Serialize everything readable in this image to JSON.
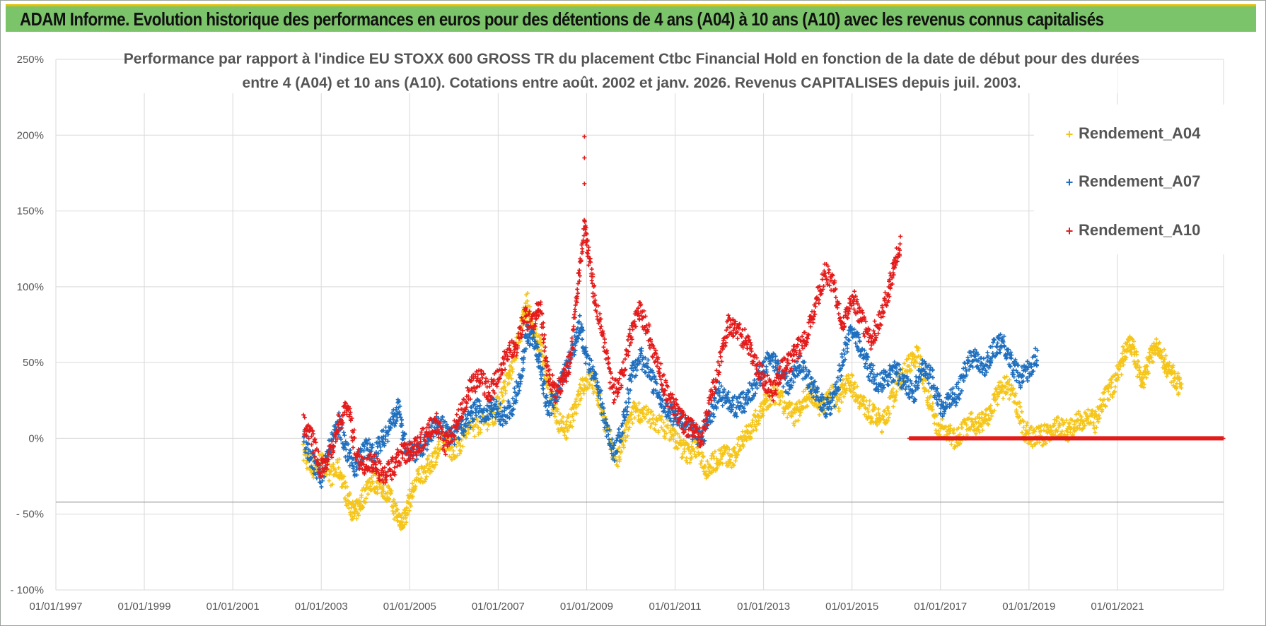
{
  "header": {
    "title": "ADAM Informe. Evolution historique des performances en euros pour des détentions de 4 ans (A04) à 10 ans (A10) avec les revenus connus capitalisés"
  },
  "chart_data": {
    "type": "scatter",
    "title_line1": "Performance par rapport à l'indice EU STOXX 600 GROSS TR  du placement Ctbc Financial Hold  en fonction de la date de début pour des durées",
    "title_line2": "entre 4 (A04) et 10 ans (A10).  Cotations entre août. 2002 et janv. 2026. Revenus CAPITALISES depuis juil. 2003.",
    "x_tick_labels": [
      "01/01/1997",
      "01/01/1999",
      "01/01/2001",
      "01/01/2003",
      "01/01/2005",
      "01/01/2007",
      "01/01/2009",
      "01/01/2011",
      "01/01/2013",
      "01/01/2015",
      "01/01/2017",
      "01/01/2019",
      "01/01/2021"
    ],
    "xlim": [
      1997.0,
      2023.4
    ],
    "y_tick_labels": [
      "250%",
      "200%",
      "150%",
      "100%",
      "50%",
      "0%",
      "- 50%",
      "- 100%"
    ],
    "y_ticks": [
      250,
      200,
      150,
      100,
      50,
      0,
      -50,
      -100
    ],
    "ylim": [
      -100,
      250
    ],
    "legend_position": "top-right",
    "series": [
      {
        "name": "Rendement_A04",
        "color": "#f5c518",
        "points": [
          [
            2002.6,
            -10
          ],
          [
            2002.8,
            -20
          ],
          [
            2003.0,
            -15
          ],
          [
            2003.2,
            -25
          ],
          [
            2003.4,
            -20
          ],
          [
            2003.6,
            -40
          ],
          [
            2003.75,
            -50
          ],
          [
            2003.9,
            -42
          ],
          [
            2004.1,
            -28
          ],
          [
            2004.3,
            -30
          ],
          [
            2004.5,
            -35
          ],
          [
            2004.7,
            -50
          ],
          [
            2004.85,
            -55
          ],
          [
            2005.0,
            -40
          ],
          [
            2005.2,
            -25
          ],
          [
            2005.4,
            -20
          ],
          [
            2005.6,
            -10
          ],
          [
            2005.8,
            0
          ],
          [
            2006.0,
            -10
          ],
          [
            2006.3,
            5
          ],
          [
            2006.6,
            10
          ],
          [
            2006.9,
            15
          ],
          [
            2007.1,
            30
          ],
          [
            2007.3,
            45
          ],
          [
            2007.5,
            70
          ],
          [
            2007.65,
            90
          ],
          [
            2007.8,
            70
          ],
          [
            2007.95,
            60
          ],
          [
            2008.1,
            40
          ],
          [
            2008.3,
            15
          ],
          [
            2008.5,
            5
          ],
          [
            2008.7,
            15
          ],
          [
            2008.9,
            35
          ],
          [
            2009.1,
            40
          ],
          [
            2009.3,
            25
          ],
          [
            2009.5,
            0
          ],
          [
            2009.7,
            -15
          ],
          [
            2009.9,
            5
          ],
          [
            2010.1,
            20
          ],
          [
            2010.3,
            15
          ],
          [
            2010.6,
            10
          ],
          [
            2010.9,
            5
          ],
          [
            2011.1,
            -5
          ],
          [
            2011.3,
            -10
          ],
          [
            2011.5,
            -5
          ],
          [
            2011.7,
            -20
          ],
          [
            2011.9,
            -15
          ],
          [
            2012.1,
            -10
          ],
          [
            2012.3,
            -15
          ],
          [
            2012.5,
            0
          ],
          [
            2012.7,
            5
          ],
          [
            2012.9,
            15
          ],
          [
            2013.1,
            25
          ],
          [
            2013.3,
            30
          ],
          [
            2013.5,
            20
          ],
          [
            2013.7,
            15
          ],
          [
            2013.9,
            25
          ],
          [
            2014.1,
            30
          ],
          [
            2014.3,
            20
          ],
          [
            2014.5,
            30
          ],
          [
            2014.7,
            25
          ],
          [
            2014.9,
            40
          ],
          [
            2015.1,
            30
          ],
          [
            2015.3,
            20
          ],
          [
            2015.5,
            15
          ],
          [
            2015.7,
            10
          ],
          [
            2015.9,
            25
          ],
          [
            2016.1,
            40
          ],
          [
            2016.3,
            50
          ],
          [
            2016.5,
            55
          ],
          [
            2016.7,
            30
          ],
          [
            2016.9,
            10
          ],
          [
            2017.1,
            5
          ],
          [
            2017.3,
            0
          ],
          [
            2017.5,
            5
          ],
          [
            2017.7,
            10
          ],
          [
            2017.9,
            10
          ],
          [
            2018.1,
            15
          ],
          [
            2018.3,
            30
          ],
          [
            2018.5,
            35
          ],
          [
            2018.7,
            25
          ],
          [
            2018.9,
            5
          ],
          [
            2019.1,
            0
          ],
          [
            2019.3,
            2
          ],
          [
            2019.5,
            5
          ],
          [
            2019.7,
            8
          ],
          [
            2019.9,
            5
          ],
          [
            2020.1,
            10
          ],
          [
            2020.3,
            15
          ],
          [
            2020.5,
            10
          ],
          [
            2020.7,
            25
          ],
          [
            2020.9,
            35
          ],
          [
            2021.1,
            50
          ],
          [
            2021.25,
            65
          ],
          [
            2021.4,
            55
          ],
          [
            2021.55,
            35
          ],
          [
            2021.7,
            50
          ],
          [
            2021.85,
            60
          ],
          [
            2022.0,
            55
          ],
          [
            2022.15,
            45
          ],
          [
            2022.3,
            40
          ],
          [
            2022.45,
            30
          ]
        ]
      },
      {
        "name": "Rendement_A07",
        "color": "#1e6fbf",
        "points": [
          [
            2002.6,
            0
          ],
          [
            2002.8,
            -15
          ],
          [
            2003.0,
            -25
          ],
          [
            2003.2,
            -5
          ],
          [
            2003.4,
            10
          ],
          [
            2003.6,
            -10
          ],
          [
            2003.8,
            -20
          ],
          [
            2004.0,
            -5
          ],
          [
            2004.2,
            -10
          ],
          [
            2004.4,
            0
          ],
          [
            2004.6,
            10
          ],
          [
            2004.75,
            20
          ],
          [
            2004.9,
            -5
          ],
          [
            2005.1,
            -10
          ],
          [
            2005.3,
            -5
          ],
          [
            2005.5,
            5
          ],
          [
            2005.7,
            10
          ],
          [
            2005.9,
            0
          ],
          [
            2006.1,
            5
          ],
          [
            2006.3,
            10
          ],
          [
            2006.5,
            20
          ],
          [
            2006.7,
            15
          ],
          [
            2006.9,
            20
          ],
          [
            2007.1,
            15
          ],
          [
            2007.3,
            20
          ],
          [
            2007.5,
            40
          ],
          [
            2007.65,
            70
          ],
          [
            2007.8,
            65
          ],
          [
            2007.95,
            50
          ],
          [
            2008.1,
            20
          ],
          [
            2008.3,
            25
          ],
          [
            2008.5,
            45
          ],
          [
            2008.7,
            60
          ],
          [
            2008.85,
            75
          ],
          [
            2009.0,
            50
          ],
          [
            2009.2,
            40
          ],
          [
            2009.4,
            15
          ],
          [
            2009.6,
            -10
          ],
          [
            2009.8,
            5
          ],
          [
            2010.0,
            40
          ],
          [
            2010.2,
            55
          ],
          [
            2010.4,
            45
          ],
          [
            2010.6,
            30
          ],
          [
            2010.8,
            20
          ],
          [
            2011.0,
            15
          ],
          [
            2011.2,
            10
          ],
          [
            2011.4,
            5
          ],
          [
            2011.6,
            0
          ],
          [
            2011.8,
            15
          ],
          [
            2012.0,
            30
          ],
          [
            2012.2,
            25
          ],
          [
            2012.4,
            20
          ],
          [
            2012.6,
            25
          ],
          [
            2012.8,
            35
          ],
          [
            2013.0,
            45
          ],
          [
            2013.2,
            55
          ],
          [
            2013.4,
            40
          ],
          [
            2013.6,
            35
          ],
          [
            2013.8,
            50
          ],
          [
            2014.0,
            40
          ],
          [
            2014.2,
            30
          ],
          [
            2014.4,
            20
          ],
          [
            2014.6,
            25
          ],
          [
            2014.8,
            55
          ],
          [
            2015.0,
            70
          ],
          [
            2015.2,
            60
          ],
          [
            2015.4,
            45
          ],
          [
            2015.6,
            35
          ],
          [
            2015.8,
            40
          ],
          [
            2016.0,
            45
          ],
          [
            2016.2,
            35
          ],
          [
            2016.4,
            30
          ],
          [
            2016.6,
            45
          ],
          [
            2016.8,
            40
          ],
          [
            2017.0,
            20
          ],
          [
            2017.2,
            25
          ],
          [
            2017.4,
            30
          ],
          [
            2017.6,
            50
          ],
          [
            2017.8,
            55
          ],
          [
            2018.0,
            45
          ],
          [
            2018.2,
            60
          ],
          [
            2018.4,
            65
          ],
          [
            2018.6,
            50
          ],
          [
            2018.8,
            40
          ],
          [
            2019.0,
            45
          ],
          [
            2019.2,
            55
          ]
        ]
      },
      {
        "name": "Rendement_A10",
        "color": "#e41b1b",
        "points": [
          [
            2002.6,
            10
          ],
          [
            2002.8,
            0
          ],
          [
            2003.0,
            -20
          ],
          [
            2003.2,
            -10
          ],
          [
            2003.4,
            10
          ],
          [
            2003.6,
            20
          ],
          [
            2003.8,
            -10
          ],
          [
            2004.0,
            -20
          ],
          [
            2004.2,
            -15
          ],
          [
            2004.4,
            -25
          ],
          [
            2004.6,
            -20
          ],
          [
            2004.8,
            -10
          ],
          [
            2005.0,
            -10
          ],
          [
            2005.2,
            -5
          ],
          [
            2005.4,
            5
          ],
          [
            2005.6,
            10
          ],
          [
            2005.8,
            -5
          ],
          [
            2006.0,
            5
          ],
          [
            2006.2,
            20
          ],
          [
            2006.4,
            35
          ],
          [
            2006.6,
            40
          ],
          [
            2006.8,
            30
          ],
          [
            2007.0,
            40
          ],
          [
            2007.2,
            55
          ],
          [
            2007.4,
            60
          ],
          [
            2007.6,
            80
          ],
          [
            2007.8,
            75
          ],
          [
            2007.95,
            90
          ],
          [
            2008.1,
            45
          ],
          [
            2008.3,
            30
          ],
          [
            2008.5,
            40
          ],
          [
            2008.65,
            55
          ],
          [
            2008.8,
            100
          ],
          [
            2008.95,
            140
          ],
          [
            2009.05,
            120
          ],
          [
            2009.2,
            90
          ],
          [
            2009.4,
            60
          ],
          [
            2009.6,
            30
          ],
          [
            2009.8,
            40
          ],
          [
            2010.0,
            70
          ],
          [
            2010.2,
            85
          ],
          [
            2010.4,
            70
          ],
          [
            2010.6,
            50
          ],
          [
            2010.8,
            30
          ],
          [
            2011.0,
            20
          ],
          [
            2011.2,
            10
          ],
          [
            2011.4,
            5
          ],
          [
            2011.6,
            0
          ],
          [
            2011.8,
            25
          ],
          [
            2012.0,
            50
          ],
          [
            2012.2,
            75
          ],
          [
            2012.4,
            70
          ],
          [
            2012.6,
            65
          ],
          [
            2012.8,
            50
          ],
          [
            2013.0,
            40
          ],
          [
            2013.2,
            30
          ],
          [
            2013.4,
            45
          ],
          [
            2013.6,
            50
          ],
          [
            2013.8,
            60
          ],
          [
            2014.0,
            70
          ],
          [
            2014.2,
            90
          ],
          [
            2014.4,
            110
          ],
          [
            2014.6,
            100
          ],
          [
            2014.8,
            75
          ],
          [
            2015.0,
            95
          ],
          [
            2015.2,
            80
          ],
          [
            2015.4,
            65
          ],
          [
            2015.6,
            75
          ],
          [
            2015.8,
            95
          ],
          [
            2015.95,
            115
          ],
          [
            2016.1,
            130
          ]
        ]
      }
    ],
    "flat_series": {
      "name": "Rendement_A10",
      "from": 2016.3,
      "to": 2023.4,
      "value": 0
    },
    "outliers": {
      "series": "Rendement_A10",
      "points": [
        [
          2008.95,
          168
        ],
        [
          2008.95,
          185
        ],
        [
          2008.95,
          199
        ]
      ]
    },
    "reference_line": -42
  }
}
